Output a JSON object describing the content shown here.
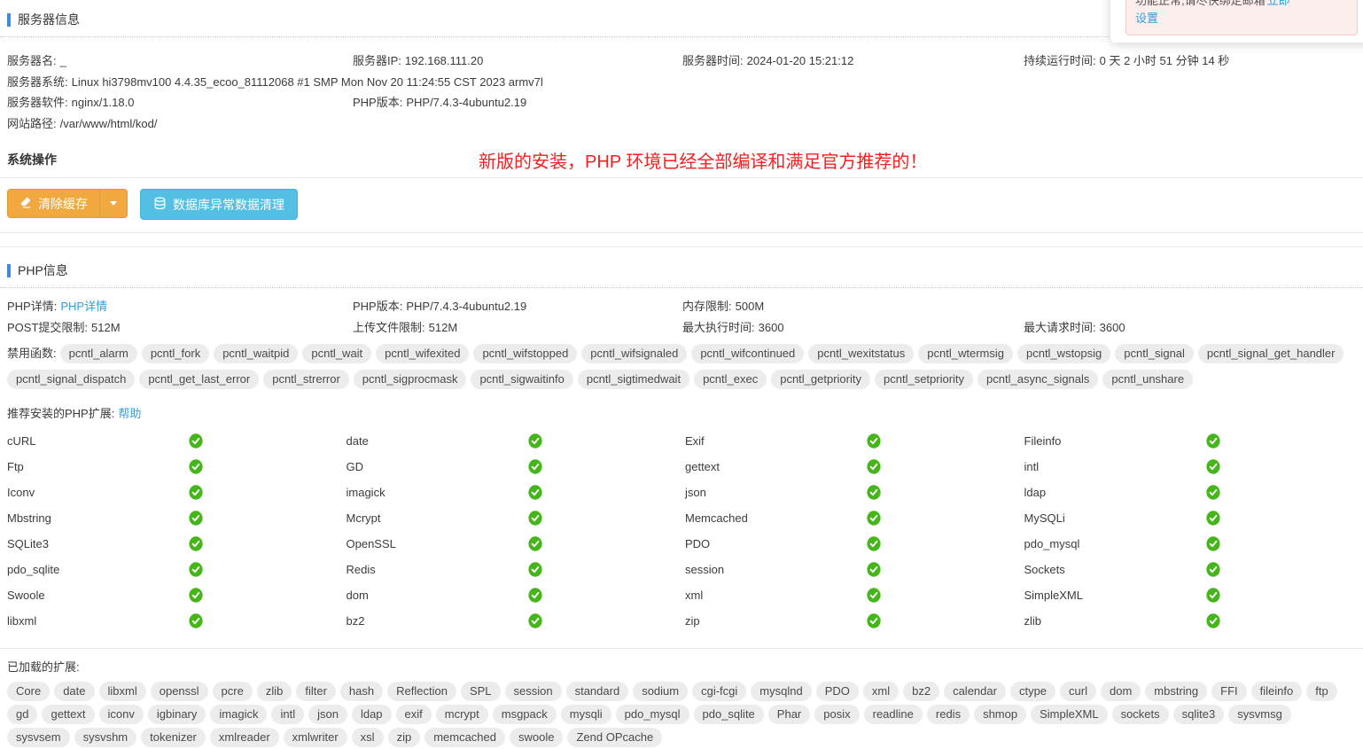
{
  "colors": {
    "accent_blue": "#3c8be0",
    "link_blue": "#2e9fdf",
    "warning_orange": "#f0a83f",
    "info_blue": "#53bfe2",
    "success_green": "#45b619",
    "tag_bg": "#ececec",
    "annotation_red": "#f42020",
    "alert_pink_bg": "#fdeeee",
    "alert_pink_border": "#f4caca"
  },
  "notification": {
    "line1": "功能正常,请尽快绑定邮箱",
    "line1_link": "立即",
    "line2_link": "设置"
  },
  "server_info": {
    "title": "服务器信息",
    "name_label": "服务器名:",
    "name_value": "_",
    "ip_label": "服务器IP:",
    "ip_value": "192.168.111.20",
    "time_label": "服务器时间:",
    "time_value": "2024-01-20 15:21:12",
    "uptime_label": "持续运行时间:",
    "uptime_value": "0 天 2 小时 51 分钟 14 秒",
    "os_label": "服务器系统:",
    "os_value": "Linux hi3798mv100 4.4.35_ecoo_81112068 #1 SMP Mon Nov 20 11:24:55 CST 2023 armv7l",
    "software_label": "服务器软件:",
    "software_value": "nginx/1.18.0",
    "php_label": "PHP版本:",
    "php_value": "PHP/7.4.3-4ubuntu2.19",
    "path_label": "网站路径:",
    "path_value": "/var/www/html/kod/"
  },
  "system_ops": {
    "title": "系统操作",
    "clear_cache_label": "清除缓存",
    "db_clean_label": "数据库异常数据清理",
    "annotation": "新版的安装，PHP 环境已经全部编译和满足官方推荐的！"
  },
  "php_info": {
    "title": "PHP信息",
    "detail_label": "PHP详情:",
    "detail_link": "PHP详情",
    "version_label": "PHP版本:",
    "version_value": "PHP/7.4.3-4ubuntu2.19",
    "memory_label": "内存限制:",
    "memory_value": "500M",
    "post_label": "POST提交限制:",
    "post_value": "512M",
    "upload_label": "上传文件限制:",
    "upload_value": "512M",
    "exec_label": "最大执行时间:",
    "exec_value": "3600",
    "request_label": "最大请求时间:",
    "request_value": "3600",
    "disabled_label": "禁用函数:",
    "disabled_functions": [
      "pcntl_alarm",
      "pcntl_fork",
      "pcntl_waitpid",
      "pcntl_wait",
      "pcntl_wifexited",
      "pcntl_wifstopped",
      "pcntl_wifsignaled",
      "pcntl_wifcontinued",
      "pcntl_wexitstatus",
      "pcntl_wtermsig",
      "pcntl_wstopsig",
      "pcntl_signal",
      "pcntl_signal_get_handler",
      "pcntl_signal_dispatch",
      "pcntl_get_last_error",
      "pcntl_strerror",
      "pcntl_sigprocmask",
      "pcntl_sigwaitinfo",
      "pcntl_sigtimedwait",
      "pcntl_exec",
      "pcntl_getpriority",
      "pcntl_setpriority",
      "pcntl_async_signals",
      "pcntl_unshare"
    ],
    "recommended_label": "推荐安装的PHP扩展:",
    "help_link": "帮助",
    "extensions": [
      {
        "name": "cURL",
        "status": "ok"
      },
      {
        "name": "date",
        "status": "ok"
      },
      {
        "name": "Exif",
        "status": "ok"
      },
      {
        "name": "Fileinfo",
        "status": "ok"
      },
      {
        "name": "Ftp",
        "status": "ok"
      },
      {
        "name": "GD",
        "status": "ok"
      },
      {
        "name": "gettext",
        "status": "ok"
      },
      {
        "name": "intl",
        "status": "ok"
      },
      {
        "name": "Iconv",
        "status": "ok"
      },
      {
        "name": "imagick",
        "status": "ok"
      },
      {
        "name": "json",
        "status": "ok"
      },
      {
        "name": "ldap",
        "status": "ok"
      },
      {
        "name": "Mbstring",
        "status": "ok"
      },
      {
        "name": "Mcrypt",
        "status": "ok"
      },
      {
        "name": "Memcached",
        "status": "ok"
      },
      {
        "name": "MySQLi",
        "status": "ok"
      },
      {
        "name": "SQLite3",
        "status": "ok"
      },
      {
        "name": "OpenSSL",
        "status": "ok"
      },
      {
        "name": "PDO",
        "status": "ok"
      },
      {
        "name": "pdo_mysql",
        "status": "ok"
      },
      {
        "name": "pdo_sqlite",
        "status": "ok"
      },
      {
        "name": "Redis",
        "status": "ok"
      },
      {
        "name": "session",
        "status": "ok"
      },
      {
        "name": "Sockets",
        "status": "ok"
      },
      {
        "name": "Swoole",
        "status": "ok"
      },
      {
        "name": "dom",
        "status": "ok"
      },
      {
        "name": "xml",
        "status": "ok"
      },
      {
        "name": "SimpleXML",
        "status": "ok"
      },
      {
        "name": "libxml",
        "status": "ok"
      },
      {
        "name": "bz2",
        "status": "ok"
      },
      {
        "name": "zip",
        "status": "ok"
      },
      {
        "name": "zlib",
        "status": "ok"
      }
    ],
    "loaded_label": "已加载的扩展:",
    "loaded_extensions": [
      "Core",
      "date",
      "libxml",
      "openssl",
      "pcre",
      "zlib",
      "filter",
      "hash",
      "Reflection",
      "SPL",
      "session",
      "standard",
      "sodium",
      "cgi-fcgi",
      "mysqlnd",
      "PDO",
      "xml",
      "bz2",
      "calendar",
      "ctype",
      "curl",
      "dom",
      "mbstring",
      "FFI",
      "fileinfo",
      "ftp",
      "gd",
      "gettext",
      "iconv",
      "igbinary",
      "imagick",
      "intl",
      "json",
      "ldap",
      "exif",
      "mcrypt",
      "msgpack",
      "mysqli",
      "pdo_mysql",
      "pdo_sqlite",
      "Phar",
      "posix",
      "readline",
      "redis",
      "shmop",
      "SimpleXML",
      "sockets",
      "sqlite3",
      "sysvmsg",
      "sysvsem",
      "sysvshm",
      "tokenizer",
      "xmlreader",
      "xmlwriter",
      "xsl",
      "zip",
      "memcached",
      "swoole",
      "Zend OPcache"
    ]
  }
}
